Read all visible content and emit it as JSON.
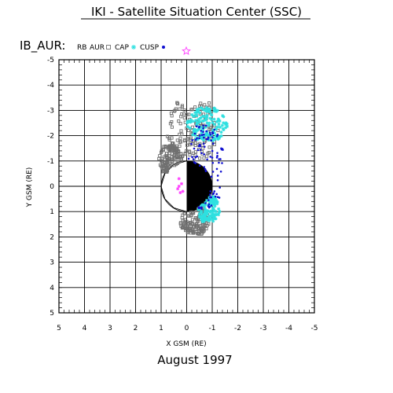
{
  "header": {
    "title": "IKI - Satellite Situation Center (SSC)",
    "subtitle": "IB_AUR:"
  },
  "footer": {
    "date": "August   1997"
  },
  "chart_data": {
    "type": "scatter",
    "title": "IKI - Satellite Situation Center (SSC)",
    "xlabel": "X GSM (RE)",
    "ylabel": "Y GSM (RE)",
    "xlim": [
      5,
      -5
    ],
    "ylim": [
      5,
      -5
    ],
    "x_ticks": [
      "5",
      "4",
      "3",
      "2",
      "1",
      "0",
      "-1",
      "-2",
      "-3",
      "-4",
      "-5"
    ],
    "y_ticks": [
      "-5",
      "-4",
      "-3",
      "-2",
      "-1",
      "0",
      "1",
      "2",
      "3",
      "4",
      "5"
    ],
    "grid": true,
    "legend_position": "top-left",
    "earth": {
      "center": [
        0,
        0
      ],
      "radius": 1,
      "night_side": "x<0 filled black"
    },
    "colors": {
      "RB": "#000000",
      "AUR": "#707070",
      "CAP": "#2ee0e0",
      "CUSP": "#1010d0",
      "magenta": "#ff40ff"
    },
    "series": [
      {
        "name": "RB",
        "marker": "none",
        "color": "#000000",
        "points": [],
        "curves": [
          {
            "points": [
              [
                0.0,
                -1.0
              ],
              [
                0.5,
                -0.85
              ],
              [
                0.85,
                -0.5
              ],
              [
                1.0,
                0.0
              ],
              [
                0.85,
                0.5
              ],
              [
                0.5,
                0.85
              ],
              [
                0.0,
                1.0
              ]
            ]
          }
        ]
      },
      {
        "name": "AUR",
        "marker": "square",
        "color": "#707070",
        "bands": [
          {
            "x0": 0.9,
            "x1": -1.3,
            "ymin": -3.3,
            "ymax": -1.1
          },
          {
            "x0": 0.3,
            "x1": -0.9,
            "ymin": 0.8,
            "ymax": 1.9
          },
          {
            "x0": 1.1,
            "x1": 0.2,
            "ymin": -1.6,
            "ymax": -0.5
          }
        ]
      },
      {
        "name": "CAP",
        "marker": "asterisk",
        "color": "#2ee0e0",
        "bands": [
          {
            "x0": 0.0,
            "x1": -1.6,
            "ymin": -3.1,
            "ymax": -1.8
          },
          {
            "x0": -0.4,
            "x1": -1.3,
            "ymin": 0.4,
            "ymax": 1.4
          }
        ]
      },
      {
        "name": "CUSP",
        "marker": "dot",
        "color": "#1010d0",
        "bands": [
          {
            "x0": 0.0,
            "x1": -1.5,
            "ymin": -2.4,
            "ymax": 0.9
          }
        ]
      },
      {
        "name": "",
        "marker": "asterisk",
        "color": "#ff40ff",
        "points": [
          [
            0.3,
            -0.3
          ],
          [
            0.2,
            -0.1
          ],
          [
            0.35,
            0.1
          ],
          [
            0.25,
            0.25
          ],
          [
            0.3,
            0.0
          ],
          [
            0.15,
            0.2
          ]
        ]
      }
    ]
  }
}
